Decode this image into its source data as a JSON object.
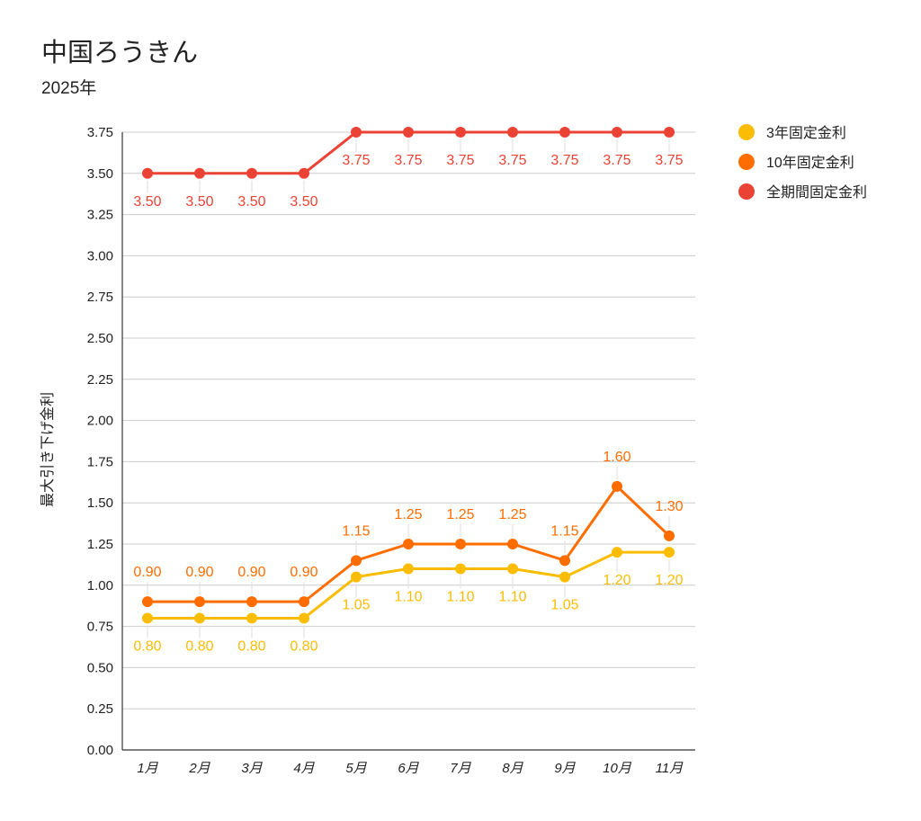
{
  "chart_data": {
    "type": "line",
    "title": "中国ろうきん",
    "subtitle": "2025年",
    "xlabel": "",
    "ylabel": "最大引き下げ金利",
    "ylim": [
      0,
      3.75
    ],
    "yticks": [
      "0.00",
      "0.25",
      "0.50",
      "0.75",
      "1.00",
      "1.25",
      "1.50",
      "1.75",
      "2.00",
      "2.25",
      "2.50",
      "2.75",
      "3.00",
      "3.25",
      "3.50",
      "3.75"
    ],
    "grid": true,
    "legend_position": "right",
    "categories": [
      "1月",
      "2月",
      "3月",
      "4月",
      "5月",
      "6月",
      "7月",
      "8月",
      "9月",
      "10月",
      "11月"
    ],
    "series": [
      {
        "name": "3年固定金利",
        "color": "#fbbc04",
        "label_position": "below",
        "values": [
          0.8,
          0.8,
          0.8,
          0.8,
          1.05,
          1.1,
          1.1,
          1.1,
          1.05,
          1.2,
          1.2
        ]
      },
      {
        "name": "10年固定金利",
        "color": "#ff6d01",
        "label_position": "above",
        "values": [
          0.9,
          0.9,
          0.9,
          0.9,
          1.15,
          1.25,
          1.25,
          1.25,
          1.15,
          1.6,
          1.3
        ]
      },
      {
        "name": "全期間固定金利",
        "color": "#ea4335",
        "label_position": "below",
        "values": [
          3.5,
          3.5,
          3.5,
          3.5,
          3.75,
          3.75,
          3.75,
          3.75,
          3.75,
          3.75,
          3.75
        ]
      }
    ]
  }
}
